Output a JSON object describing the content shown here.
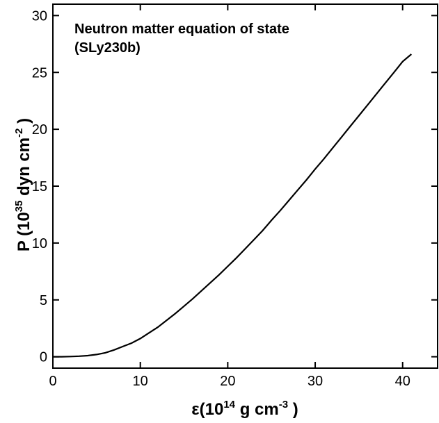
{
  "chart_data": {
    "type": "line",
    "title": "Neutron matter equation of state",
    "subtitle": "(SLy230b)",
    "xlabel": {
      "prefix": "ε(10",
      "exp": "14",
      "units": " g cm",
      "units_exp": "-3",
      "suffix": " )"
    },
    "ylabel": {
      "prefix": "P (10",
      "exp": "35",
      "units": " dyn cm",
      "units_exp": "-2",
      "suffix": " )"
    },
    "xlim": [
      0,
      44
    ],
    "ylim": [
      -1,
      31
    ],
    "xticks": [
      0,
      10,
      20,
      30,
      40
    ],
    "yticks": [
      0,
      5,
      10,
      15,
      20,
      25,
      30
    ],
    "grid": false,
    "series": [
      {
        "color": "#000000",
        "x": [
          0,
          1,
          2,
          3,
          4,
          5,
          6,
          7,
          8,
          9,
          10,
          11,
          12,
          13,
          14,
          15,
          16,
          17,
          18,
          19,
          20,
          21,
          22,
          23,
          24,
          25,
          26,
          27,
          28,
          29,
          30,
          31,
          32,
          33,
          34,
          35,
          36,
          37,
          38,
          39,
          40,
          41
        ],
        "y": [
          0.0,
          0.0,
          0.02,
          0.05,
          0.1,
          0.2,
          0.35,
          0.6,
          0.9,
          1.2,
          1.6,
          2.1,
          2.6,
          3.2,
          3.8,
          4.45,
          5.1,
          5.8,
          6.5,
          7.2,
          7.95,
          8.7,
          9.5,
          10.3,
          11.1,
          12.0,
          12.85,
          13.75,
          14.65,
          15.55,
          16.5,
          17.4,
          18.35,
          19.3,
          20.25,
          21.2,
          22.15,
          23.1,
          24.05,
          25.0,
          25.95,
          26.6
        ]
      }
    ]
  }
}
